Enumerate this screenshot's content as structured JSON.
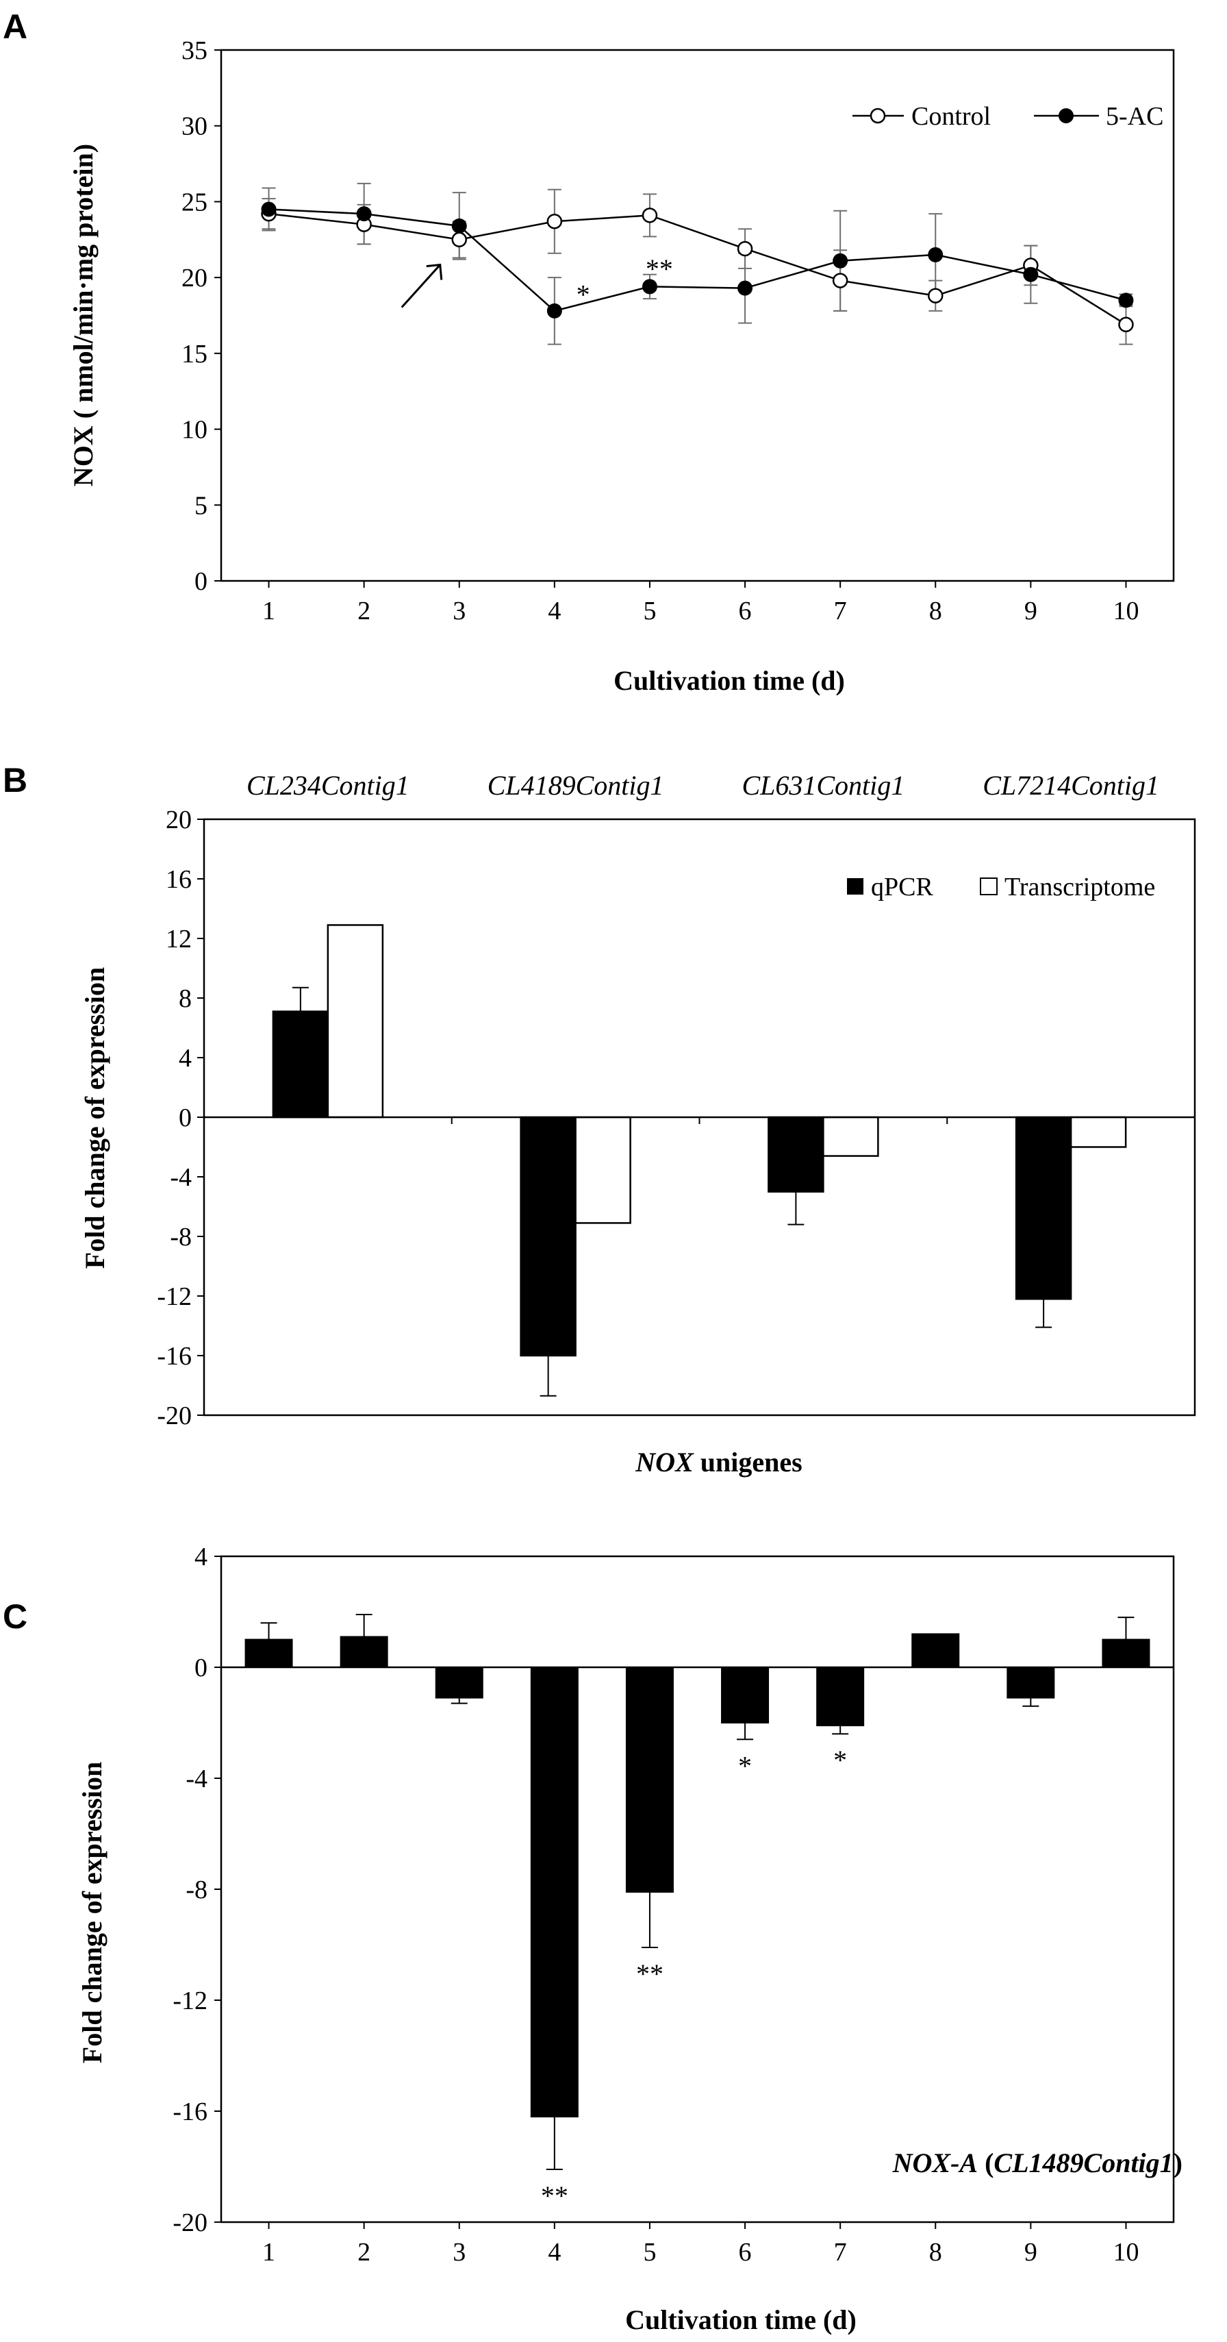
{
  "colors": {
    "ink": "#000000",
    "errorbar": "#6f6f6f",
    "filled": "#000000",
    "open": "#ffffff"
  },
  "chart_data": [
    {
      "panel": "A",
      "type": "line",
      "xlabel": "Cultivation time  (d)",
      "ylabel": "NOX ( nmol/min·mg protein)",
      "x": [
        1,
        2,
        3,
        4,
        5,
        6,
        7,
        8,
        9,
        10
      ],
      "xlim": [
        0.5,
        10.5
      ],
      "ylim": [
        0,
        35
      ],
      "yticks": [
        0,
        5,
        10,
        15,
        20,
        25,
        30,
        35
      ],
      "xticks": [
        "1",
        "2",
        "3",
        "4",
        "5",
        "6",
        "7",
        "8",
        "9",
        "10"
      ],
      "series": [
        {
          "name": "Control",
          "marker": "open-circle",
          "values": [
            24.2,
            23.5,
            22.5,
            23.7,
            24.1,
            21.9,
            19.8,
            18.8,
            20.8,
            16.9
          ],
          "errors": [
            1.0,
            1.3,
            1.2,
            2.1,
            1.4,
            1.3,
            2.0,
            1.0,
            1.3,
            1.3
          ]
        },
        {
          "name": "5-AC",
          "marker": "filled-circle",
          "values": [
            24.5,
            24.2,
            23.4,
            17.8,
            19.4,
            19.3,
            21.1,
            21.5,
            20.2,
            18.5
          ],
          "errors": [
            1.4,
            2.0,
            2.2,
            2.2,
            0.8,
            2.3,
            3.3,
            2.7,
            1.9,
            0.4
          ]
        }
      ],
      "annotations": [
        {
          "text": "*",
          "x": 4.3,
          "y": 18.9
        },
        {
          "text": "**",
          "x": 5.1,
          "y": 20.6
        }
      ],
      "arrow_at": {
        "x": 3,
        "y": 21.2
      }
    },
    {
      "panel": "B",
      "type": "bar",
      "xlabel_italic": "NOX",
      "xlabel_rest": " unigenes",
      "ylabel": "Fold change of expression",
      "categories": [
        "CL234Contig1",
        "CL4189Contig1",
        "CL631Contig1",
        "CL7214Contig1"
      ],
      "ylim": [
        -20,
        20
      ],
      "yticks": [
        -20,
        -16,
        -12,
        -8,
        -4,
        0,
        4,
        8,
        12,
        16,
        20
      ],
      "series": [
        {
          "name": "qPCR",
          "fill": "filled",
          "values": [
            7.1,
            -16.0,
            -5.0,
            -12.2
          ],
          "errors": [
            1.6,
            2.7,
            2.2,
            1.9
          ]
        },
        {
          "name": "Transcriptome",
          "fill": "open",
          "values": [
            12.9,
            -7.1,
            -2.6,
            -2.0
          ]
        }
      ]
    },
    {
      "panel": "C",
      "type": "bar",
      "xlabel": "Cultivation time (d)",
      "ylabel": "Fold change of expression",
      "categories": [
        "1",
        "2",
        "3",
        "4",
        "5",
        "6",
        "7",
        "8",
        "9",
        "10"
      ],
      "ylim": [
        -20,
        4
      ],
      "yticks": [
        -20,
        -16,
        -12,
        -8,
        -4,
        0,
        4
      ],
      "values": [
        1.0,
        1.1,
        -1.1,
        -16.2,
        -8.1,
        -2.0,
        -2.1,
        1.2,
        -1.1,
        1.0
      ],
      "errors": [
        0.6,
        0.8,
        0.2,
        1.9,
        2.0,
        0.6,
        0.3,
        0.0,
        0.3,
        0.8
      ],
      "significance": [
        "",
        "",
        "",
        "**",
        "**",
        "*",
        "*",
        "",
        "",
        ""
      ],
      "note_bold_italic": "NOX-A",
      "note_open": " (",
      "note_italic": "CL1489Contig1",
      "note_close": ")"
    }
  ]
}
